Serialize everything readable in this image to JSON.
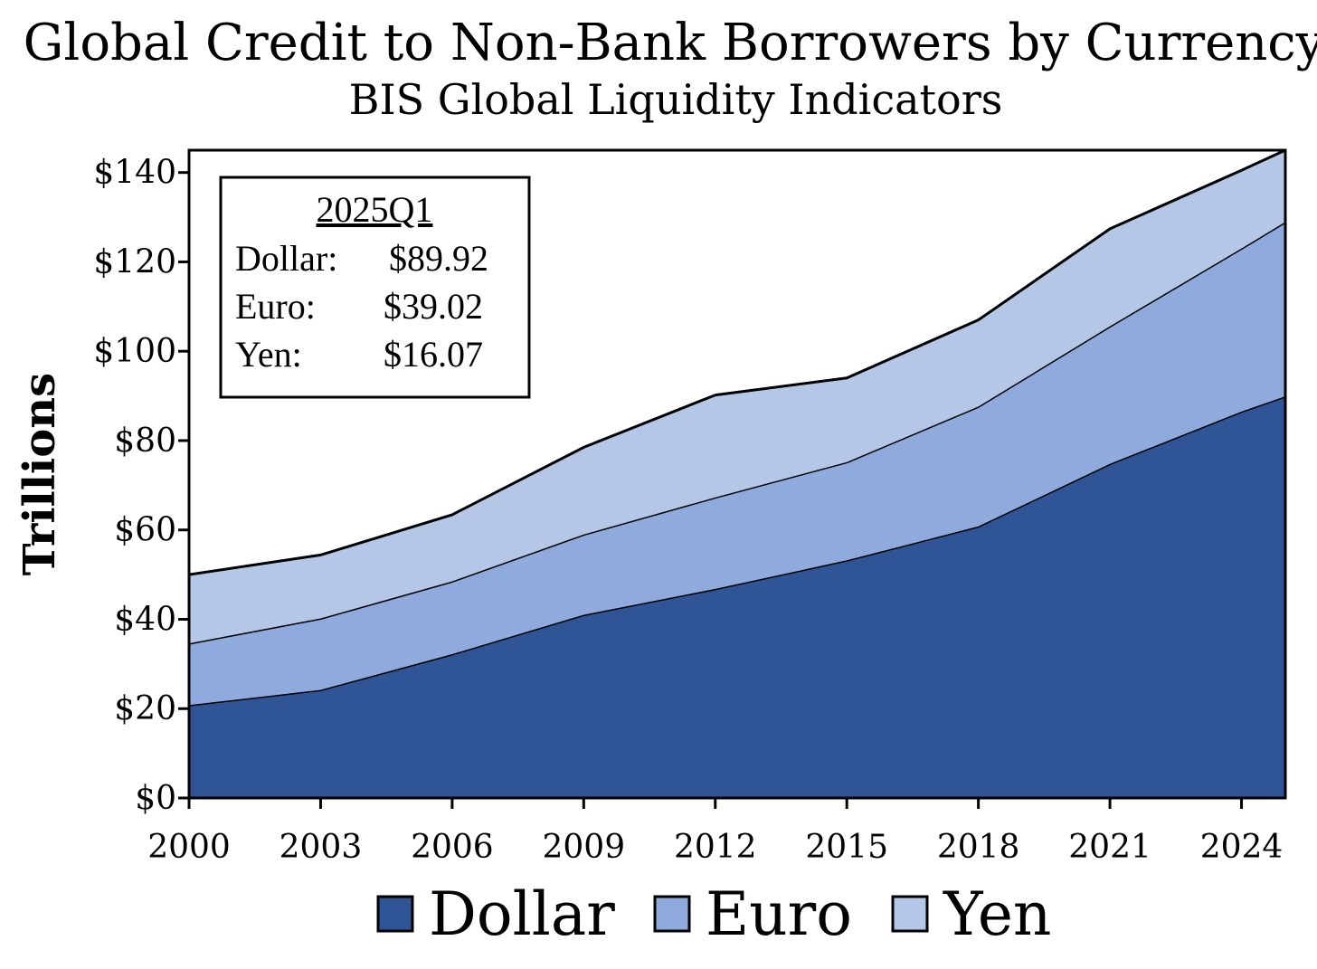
{
  "chart_data": {
    "type": "area",
    "stacked": true,
    "title": "Global Credit to Non-Bank Borrowers by Currency",
    "subtitle": "BIS Global Liquidity Indicators",
    "ylabel": "Trillions",
    "xlabel": "",
    "ylim": [
      0,
      145
    ],
    "xlim": [
      2000.0,
      2025.0
    ],
    "yticks": [
      0,
      20,
      40,
      60,
      80,
      100,
      120,
      140
    ],
    "ytick_labels": [
      "$0",
      "$20",
      "$40",
      "$60",
      "$80",
      "$100",
      "$120",
      "$140"
    ],
    "xticks": [
      2000,
      2003,
      2006,
      2009,
      2012,
      2015,
      2018,
      2021,
      2024
    ],
    "xtick_labels": [
      "2000",
      "2003",
      "2006",
      "2009",
      "2012",
      "2015",
      "2018",
      "2021",
      "2024"
    ],
    "grid": false,
    "legend_position": "bottom",
    "inset": {
      "heading": "2025Q1",
      "rows": [
        {
          "label": "Dollar:",
          "value": "$89.92"
        },
        {
          "label": "Euro:",
          "value": "$39.02"
        },
        {
          "label": "Yen:",
          "value": "$16.07"
        }
      ]
    },
    "x": [
      2000.0,
      2003.0,
      2006.0,
      2009.0,
      2012.0,
      2015.0,
      2018.0,
      2021.0,
      2024.0,
      2025.0
    ],
    "series": [
      {
        "name": "Dollar",
        "color": "#2f5597",
        "values": [
          20.8,
          24.2,
          32.2,
          41.0,
          46.8,
          53.2,
          60.8,
          74.8,
          86.5,
          89.92
        ]
      },
      {
        "name": "Euro",
        "color": "#8faadc",
        "values": [
          13.8,
          16.0,
          16.3,
          18.0,
          20.5,
          22.0,
          26.8,
          30.8,
          36.5,
          39.02
        ]
      },
      {
        "name": "Yen",
        "color": "#b4c7e7",
        "values": [
          15.4,
          14.2,
          14.9,
          19.5,
          22.9,
          18.8,
          19.4,
          21.8,
          17.5,
          16.07
        ]
      }
    ]
  }
}
